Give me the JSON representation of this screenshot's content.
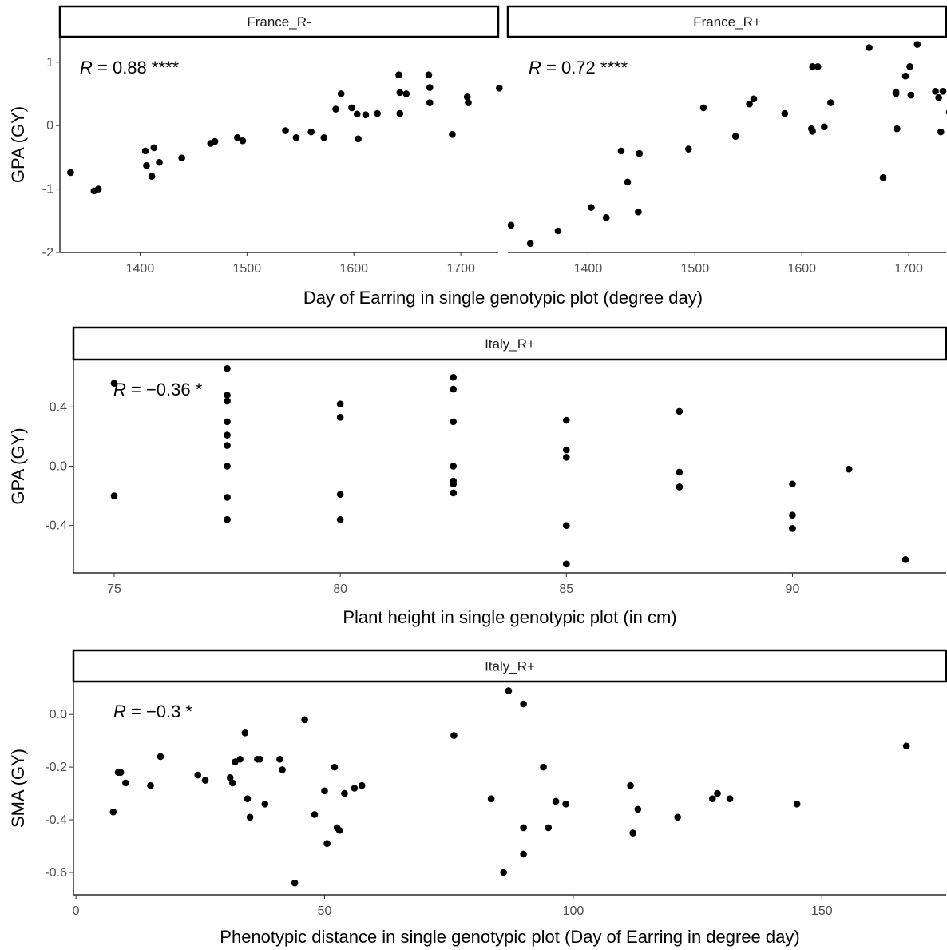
{
  "chart_data": [
    {
      "type": "scatter",
      "facet_labels": [
        "France_R-",
        "France_R+"
      ],
      "xlabel": "Day of Earring in single genotypic plot (degree day)",
      "ylabel": "GPA (GY)",
      "xlim": [
        1325,
        1735
      ],
      "ylim": [
        -2,
        1.4
      ],
      "xticks": [
        1400,
        1500,
        1600,
        1700
      ],
      "yticks": [
        -2,
        -1,
        0,
        1
      ],
      "ytick_labels": [
        "-2",
        "-1",
        "0",
        "1"
      ],
      "panels": [
        {
          "label": "France_R-",
          "annotation": "R = 0.88 ****",
          "x": [
            1335,
            1357,
            1361,
            1405,
            1406,
            1411,
            1413,
            1418,
            1439,
            1466,
            1470,
            1491,
            1496,
            1536,
            1546,
            1560,
            1572,
            1583,
            1588,
            1598,
            1603,
            1604,
            1611,
            1622,
            1642,
            1643,
            1643,
            1649,
            1670,
            1671,
            1671,
            1692,
            1706,
            1707,
            1736
          ],
          "y": [
            -0.74,
            -1.03,
            -1.0,
            -0.4,
            -0.63,
            -0.8,
            -0.35,
            -0.58,
            -0.51,
            -0.28,
            -0.25,
            -0.19,
            -0.24,
            -0.08,
            -0.19,
            -0.1,
            -0.19,
            0.26,
            0.5,
            0.28,
            0.18,
            -0.21,
            0.17,
            0.19,
            0.8,
            0.52,
            0.19,
            0.5,
            0.8,
            0.6,
            0.36,
            -0.14,
            0.45,
            0.36,
            0.59
          ]
        },
        {
          "label": "France_R+",
          "annotation": "R = 0.72 ****",
          "x": [
            1328,
            1346,
            1372,
            1403,
            1417,
            1431,
            1437,
            1447,
            1448,
            1448,
            1494,
            1508,
            1538,
            1551,
            1555,
            1584,
            1609,
            1610,
            1610,
            1615,
            1621,
            1627,
            1663,
            1676,
            1688,
            1688,
            1689,
            1697,
            1701,
            1702,
            1708,
            1725,
            1728,
            1730,
            1732,
            1738,
            1761
          ],
          "y": [
            -1.57,
            -1.86,
            -1.66,
            -1.29,
            -1.45,
            -0.4,
            -0.89,
            -1.36,
            -0.44,
            -0.44,
            -0.37,
            0.28,
            -0.17,
            0.34,
            0.42,
            0.19,
            -0.05,
            -0.09,
            0.93,
            0.93,
            -0.02,
            0.36,
            1.23,
            -0.82,
            0.5,
            0.53,
            -0.05,
            0.78,
            0.93,
            0.48,
            1.28,
            0.54,
            0.44,
            -0.1,
            0.54,
            0.21,
            0.43
          ]
        }
      ]
    },
    {
      "type": "scatter",
      "facet_labels": [
        "Italy_R+"
      ],
      "xlabel": "Plant height in single genotypic plot (in cm)",
      "ylabel": "GPA (GY)",
      "xlim": [
        74.1,
        93.4
      ],
      "ylim": [
        -0.72,
        0.72
      ],
      "xticks": [
        75,
        80,
        85,
        90
      ],
      "yticks": [
        -0.4,
        0.0,
        0.4
      ],
      "ytick_labels": [
        "-0.4",
        "0.0",
        "0.4"
      ],
      "panels": [
        {
          "label": "Italy_R+",
          "annotation": "R = −0.36 *",
          "x": [
            75,
            75,
            77.5,
            77.5,
            77.5,
            77.5,
            77.5,
            77.5,
            77.5,
            77.5,
            77.5,
            77.5,
            80,
            80,
            80,
            80,
            82.5,
            82.5,
            82.5,
            82.5,
            82.5,
            82.5,
            82.5,
            82.5,
            85,
            85,
            85,
            85,
            85,
            85,
            87.5,
            87.5,
            87.5,
            87.5,
            90,
            90,
            90,
            90,
            91.25,
            92.5
          ],
          "y": [
            0.56,
            -0.2,
            0.66,
            0.48,
            0.44,
            0.3,
            0.21,
            0.14,
            0.0,
            -0.21,
            -0.36,
            -0.36,
            0.42,
            0.33,
            -0.19,
            -0.36,
            0.6,
            0.52,
            0.3,
            0.0,
            -0.1,
            -0.12,
            -0.18,
            -0.18,
            0.31,
            0.11,
            0.06,
            -0.4,
            -0.66,
            -0.66,
            0.37,
            -0.04,
            -0.14,
            -0.14,
            -0.12,
            -0.33,
            -0.42,
            -0.42,
            -0.02,
            -0.63
          ]
        }
      ]
    },
    {
      "type": "scatter",
      "facet_labels": [
        "Italy_R+"
      ],
      "xlabel": "Phenotypic distance in single genotypic plot (Day of Earring in degree day)",
      "ylabel": "SMA (GY)",
      "xlim": [
        -0.5,
        175
      ],
      "ylim": [
        -0.685,
        0.125
      ],
      "xticks": [
        0,
        50,
        100,
        150
      ],
      "yticks": [
        -0.6,
        -0.4,
        -0.2,
        0.0
      ],
      "ytick_labels": [
        "-0.6",
        "-0.4",
        "-0.2",
        "0.0"
      ],
      "panels": [
        {
          "label": "Italy_R+",
          "annotation": "R = −0.3 *",
          "x": [
            7.5,
            8.5,
            9,
            10,
            15,
            17,
            24.5,
            26,
            31,
            31.5,
            32,
            33,
            34,
            34.5,
            35,
            36.5,
            37,
            38,
            41,
            41.5,
            44,
            46,
            48,
            50,
            50.5,
            52,
            52.5,
            53,
            54,
            56,
            57.5,
            76,
            83.5,
            86,
            87,
            90,
            90,
            90,
            94,
            95,
            96.5,
            98.5,
            111.5,
            112,
            113,
            121,
            128,
            129,
            131.5,
            145,
            167
          ],
          "y": [
            -0.37,
            -0.22,
            -0.22,
            -0.26,
            -0.27,
            -0.16,
            -0.23,
            -0.25,
            -0.24,
            -0.26,
            -0.18,
            -0.17,
            -0.07,
            -0.32,
            -0.39,
            -0.17,
            -0.17,
            -0.34,
            -0.17,
            -0.21,
            -0.64,
            -0.02,
            -0.38,
            -0.29,
            -0.49,
            -0.2,
            -0.43,
            -0.44,
            -0.3,
            -0.28,
            -0.27,
            -0.08,
            -0.32,
            -0.6,
            0.09,
            0.04,
            -0.43,
            -0.53,
            -0.2,
            -0.43,
            -0.33,
            -0.34,
            -0.27,
            -0.45,
            -0.36,
            -0.39,
            -0.32,
            -0.3,
            -0.32,
            -0.34,
            -0.12
          ]
        }
      ]
    }
  ]
}
